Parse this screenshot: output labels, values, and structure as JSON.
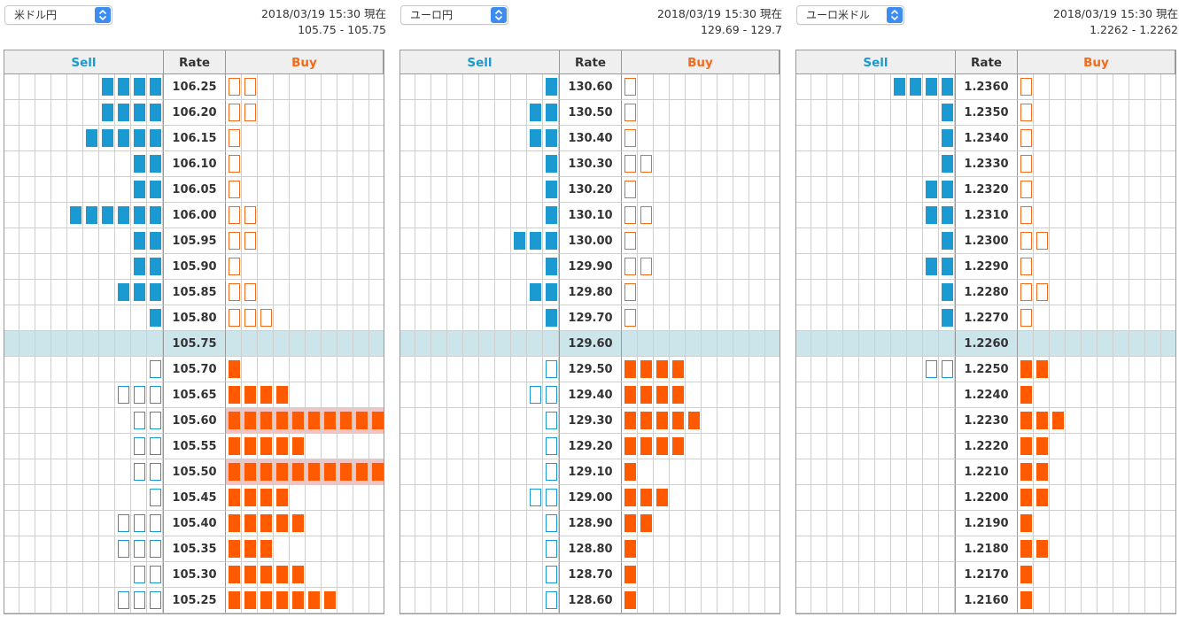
{
  "headers": {
    "sell": "Sell",
    "rate": "Rate",
    "buy": "Buy"
  },
  "colors": {
    "sell": "#1a9ad0",
    "buy": "#ff5a00",
    "current_row": "#cce5ea",
    "highlight_row": "#f7c2c2"
  },
  "panels": [
    {
      "pair": "米ドル円",
      "timestamp": "2018/03/19 15:30 現在",
      "spread": "105.75 - 105.75",
      "current_index": 10,
      "highlight_rows": [
        13,
        15
      ],
      "rows": [
        {
          "rate": "106.25",
          "sell": 4,
          "buy": 2
        },
        {
          "rate": "106.20",
          "sell": 4,
          "buy": 2
        },
        {
          "rate": "106.15",
          "sell": 5,
          "buy": 1
        },
        {
          "rate": "106.10",
          "sell": 2,
          "buy": 1
        },
        {
          "rate": "106.05",
          "sell": 2,
          "buy": 1
        },
        {
          "rate": "106.00",
          "sell": 6,
          "buy": 2
        },
        {
          "rate": "105.95",
          "sell": 2,
          "buy": 2
        },
        {
          "rate": "105.90",
          "sell": 2,
          "buy": 1
        },
        {
          "rate": "105.85",
          "sell": 3,
          "buy": 2
        },
        {
          "rate": "105.80",
          "sell": 1,
          "buy": 3
        },
        {
          "rate": "105.75",
          "sell": 0,
          "buy": 0
        },
        {
          "rate": "105.70",
          "sell": 1,
          "buy": 1
        },
        {
          "rate": "105.65",
          "sell": 3,
          "buy": 4
        },
        {
          "rate": "105.60",
          "sell": 2,
          "buy": 10
        },
        {
          "rate": "105.55",
          "sell": 2,
          "buy": 5
        },
        {
          "rate": "105.50",
          "sell": 2,
          "buy": 10
        },
        {
          "rate": "105.45",
          "sell": 1,
          "buy": 4
        },
        {
          "rate": "105.40",
          "sell": 3,
          "buy": 5
        },
        {
          "rate": "105.35",
          "sell": 3,
          "buy": 3
        },
        {
          "rate": "105.30",
          "sell": 2,
          "buy": 5
        },
        {
          "rate": "105.25",
          "sell": 3,
          "buy": 7
        }
      ]
    },
    {
      "pair": "ユーロ円",
      "timestamp": "2018/03/19 15:30 現在",
      "spread": "129.69 - 129.7",
      "current_index": 10,
      "highlight_rows": [],
      "rows": [
        {
          "rate": "130.60",
          "sell": 1,
          "buy": 1
        },
        {
          "rate": "130.50",
          "sell": 2,
          "buy": 1
        },
        {
          "rate": "130.40",
          "sell": 2,
          "buy": 1
        },
        {
          "rate": "130.30",
          "sell": 1,
          "buy": 2
        },
        {
          "rate": "130.20",
          "sell": 1,
          "buy": 1
        },
        {
          "rate": "130.10",
          "sell": 1,
          "buy": 2
        },
        {
          "rate": "130.00",
          "sell": 3,
          "buy": 1
        },
        {
          "rate": "129.90",
          "sell": 1,
          "buy": 2
        },
        {
          "rate": "129.80",
          "sell": 2,
          "buy": 1
        },
        {
          "rate": "129.70",
          "sell": 1,
          "buy": 1
        },
        {
          "rate": "129.60",
          "sell": 0,
          "buy": 0
        },
        {
          "rate": "129.50",
          "sell": 1,
          "buy": 4
        },
        {
          "rate": "129.40",
          "sell": 2,
          "buy": 4
        },
        {
          "rate": "129.30",
          "sell": 1,
          "buy": 5
        },
        {
          "rate": "129.20",
          "sell": 1,
          "buy": 4
        },
        {
          "rate": "129.10",
          "sell": 1,
          "buy": 1
        },
        {
          "rate": "129.00",
          "sell": 2,
          "buy": 3
        },
        {
          "rate": "128.90",
          "sell": 1,
          "buy": 2
        },
        {
          "rate": "128.80",
          "sell": 1,
          "buy": 1
        },
        {
          "rate": "128.70",
          "sell": 1,
          "buy": 1
        },
        {
          "rate": "128.60",
          "sell": 1,
          "buy": 1
        }
      ]
    },
    {
      "pair": "ユーロ米ドル",
      "timestamp": "2018/03/19 15:30 現在",
      "spread": "1.2262 - 1.2262",
      "current_index": 10,
      "highlight_rows": [],
      "rows": [
        {
          "rate": "1.2360",
          "sell": 4,
          "buy": 1
        },
        {
          "rate": "1.2350",
          "sell": 1,
          "buy": 1
        },
        {
          "rate": "1.2340",
          "sell": 1,
          "buy": 1
        },
        {
          "rate": "1.2330",
          "sell": 1,
          "buy": 1
        },
        {
          "rate": "1.2320",
          "sell": 2,
          "buy": 1
        },
        {
          "rate": "1.2310",
          "sell": 2,
          "buy": 1
        },
        {
          "rate": "1.2300",
          "sell": 1,
          "buy": 2
        },
        {
          "rate": "1.2290",
          "sell": 2,
          "buy": 1
        },
        {
          "rate": "1.2280",
          "sell": 1,
          "buy": 2
        },
        {
          "rate": "1.2270",
          "sell": 1,
          "buy": 1
        },
        {
          "rate": "1.2260",
          "sell": 0,
          "buy": 0
        },
        {
          "rate": "1.2250",
          "sell": 2,
          "buy": 2
        },
        {
          "rate": "1.2240",
          "sell": 0,
          "buy": 1
        },
        {
          "rate": "1.2230",
          "sell": 0,
          "buy": 3
        },
        {
          "rate": "1.2220",
          "sell": 0,
          "buy": 2
        },
        {
          "rate": "1.2210",
          "sell": 0,
          "buy": 2
        },
        {
          "rate": "1.2200",
          "sell": 0,
          "buy": 2
        },
        {
          "rate": "1.2190",
          "sell": 0,
          "buy": 1
        },
        {
          "rate": "1.2180",
          "sell": 0,
          "buy": 2
        },
        {
          "rate": "1.2170",
          "sell": 0,
          "buy": 1
        },
        {
          "rate": "1.2160",
          "sell": 0,
          "buy": 1
        }
      ]
    }
  ]
}
